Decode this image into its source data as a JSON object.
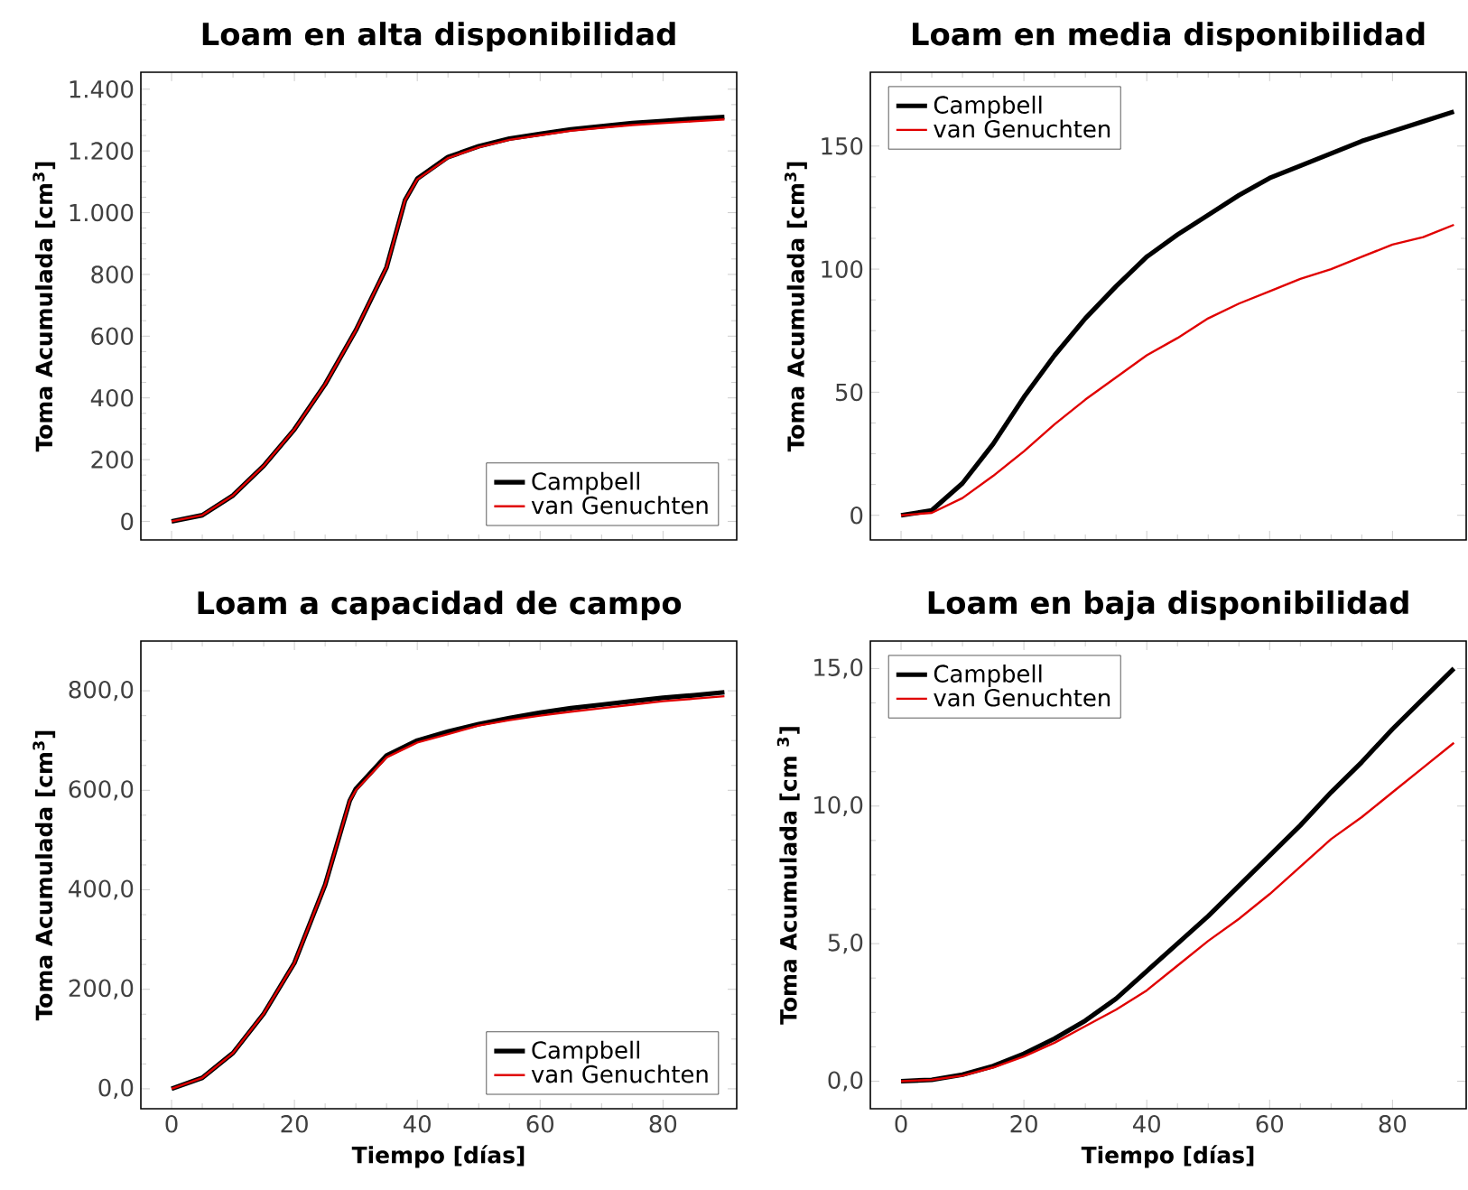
{
  "chart_data": [
    {
      "type": "line",
      "title": "Loam en alta disponibilidad",
      "ylabel": "Toma Acumulada [cm$^{3}$]",
      "xlim": [
        -5,
        92
      ],
      "xticks": [
        0,
        20,
        40,
        60,
        80
      ],
      "ylim": [
        -60,
        1455
      ],
      "yticks": [
        0,
        200,
        400,
        600,
        800,
        {
          "value": 1000,
          "label": "1.000"
        },
        {
          "value": 1200,
          "label": "1.200"
        },
        {
          "value": 1400,
          "label": "1.400"
        }
      ],
      "tick_labels": "y",
      "legend": "bottom right",
      "grid": false,
      "marker": "none",
      "line_style": "solid",
      "x": [
        0,
        5,
        10,
        15,
        20,
        25,
        30,
        35,
        38,
        40,
        45,
        50,
        55,
        60,
        65,
        70,
        75,
        80,
        85,
        90
      ],
      "series": [
        {
          "name": "Campbell",
          "color": "#000000",
          "values": [
            0,
            20,
            84,
            180,
            298,
            444,
            619,
            823,
            1040,
            1110,
            1180,
            1215,
            1240,
            1255,
            1270,
            1280,
            1290,
            1297,
            1304,
            1310
          ]
        },
        {
          "name": "van Genuchten",
          "color": "#e00000",
          "values": [
            0,
            20,
            84,
            180,
            298,
            444,
            619,
            823,
            1040,
            1108,
            1177,
            1212,
            1236,
            1251,
            1265,
            1275,
            1284,
            1290,
            1296,
            1302
          ]
        }
      ]
    },
    {
      "type": "line",
      "title": "Loam en media disponibilidad",
      "ylabel": "Toma Acumulada [cm$^{3}$]",
      "xlim": [
        -5,
        92
      ],
      "xticks": [
        0,
        20,
        40,
        60,
        80
      ],
      "ylim": [
        -10,
        180
      ],
      "yticks": [
        0,
        50,
        100,
        150
      ],
      "tick_labels": "y",
      "legend": "top left",
      "grid": false,
      "marker": "none",
      "line_style": "solid",
      "x": [
        0,
        5,
        10,
        15,
        20,
        25,
        30,
        35,
        40,
        45,
        50,
        55,
        60,
        65,
        70,
        75,
        80,
        85,
        90
      ],
      "series": [
        {
          "name": "Campbell",
          "color": "#000000",
          "values": [
            0,
            2,
            13,
            29,
            48,
            65,
            80,
            93,
            105,
            114,
            122,
            130,
            137,
            142,
            147,
            152,
            156,
            160,
            164
          ]
        },
        {
          "name": "van Genuchten",
          "color": "#e00000",
          "values": [
            0,
            1,
            7,
            16,
            26,
            37,
            47,
            56,
            65,
            72,
            80,
            86,
            91,
            96,
            100,
            105,
            110,
            113,
            118
          ]
        }
      ]
    },
    {
      "type": "line",
      "title": "Loam a capacidad de campo",
      "xlabel": "Tiempo [días]",
      "ylabel": "Toma Acumulada [cm$^{3}$]",
      "xlim": [
        -5,
        92
      ],
      "xticks": [
        0,
        20,
        40,
        60,
        80
      ],
      "ylim": [
        -40,
        900
      ],
      "yticks": [
        {
          "value": 0,
          "label": "0,0"
        },
        {
          "value": 200,
          "label": "200,0"
        },
        {
          "value": 400,
          "label": "400,0"
        },
        {
          "value": 600,
          "label": "600,0"
        },
        {
          "value": 800,
          "label": "800,0"
        }
      ],
      "legend": "bottom right",
      "grid": false,
      "marker": "none",
      "line_style": "solid",
      "x": [
        0,
        5,
        10,
        15,
        20,
        25,
        29,
        30,
        35,
        40,
        45,
        50,
        55,
        60,
        65,
        70,
        75,
        80,
        85,
        90
      ],
      "series": [
        {
          "name": "Campbell",
          "color": "#000000",
          "values": [
            0,
            22,
            72,
            151,
            253,
            410,
            579,
            603,
            670,
            700,
            718,
            733,
            745,
            756,
            765,
            772,
            779,
            786,
            791,
            797
          ]
        },
        {
          "name": "van Genuchten",
          "color": "#e00000",
          "values": [
            0,
            22,
            72,
            151,
            253,
            410,
            579,
            600,
            666,
            696,
            713,
            730,
            741,
            750,
            758,
            765,
            772,
            779,
            784,
            789
          ]
        }
      ]
    },
    {
      "type": "line",
      "title": "Loam en baja disponibilidad",
      "xlabel": "Tiempo [días]",
      "ylabel": "Toma Acumulada [cm $^{3}$]",
      "xlim": [
        -5,
        92
      ],
      "xticks": [
        0,
        20,
        40,
        60,
        80
      ],
      "ylim": [
        -1,
        16
      ],
      "yticks": [
        {
          "value": 0,
          "label": "0,0"
        },
        {
          "value": 5,
          "label": "5,0"
        },
        {
          "value": 10,
          "label": "10,0"
        },
        {
          "value": 15,
          "label": "15,0"
        }
      ],
      "legend": "top left",
      "grid": false,
      "marker": "none",
      "line_style": "solid",
      "x": [
        0,
        5,
        10,
        15,
        20,
        25,
        30,
        35,
        40,
        45,
        50,
        55,
        60,
        65,
        70,
        75,
        80,
        85,
        90
      ],
      "series": [
        {
          "name": "Campbell",
          "color": "#000000",
          "values": [
            0,
            0.05,
            0.24,
            0.55,
            1.0,
            1.55,
            2.2,
            3.0,
            4.0,
            5.0,
            6.0,
            7.1,
            8.2,
            9.3,
            10.5,
            11.6,
            12.8,
            13.9,
            15.0
          ]
        },
        {
          "name": "van Genuchten",
          "color": "#e00000",
          "values": [
            0,
            0.05,
            0.2,
            0.5,
            0.9,
            1.4,
            2.0,
            2.6,
            3.3,
            4.2,
            5.1,
            5.9,
            6.8,
            7.8,
            8.8,
            9.6,
            10.5,
            11.4,
            12.3
          ]
        }
      ]
    }
  ]
}
